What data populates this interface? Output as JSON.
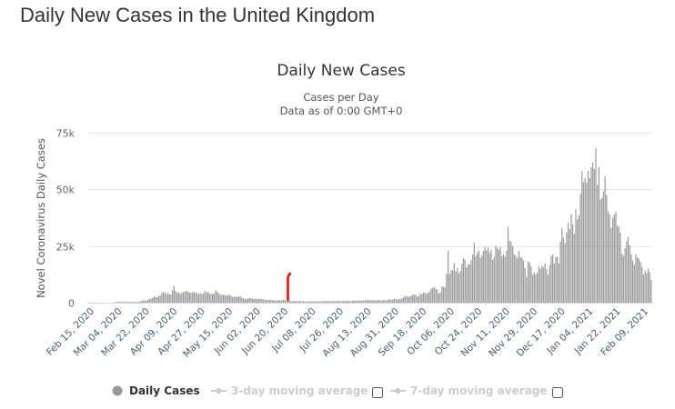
{
  "page": {
    "title": "Daily New Cases in the United Kingdom"
  },
  "chart_data": {
    "type": "bar",
    "title": "Daily New Cases",
    "subtitle": [
      "Cases per Day",
      "Data as of 0:00 GMT+0"
    ],
    "ylabel": "Novel Coronavirus Daily Cases",
    "xlabel": "",
    "ylim": [
      0,
      75000
    ],
    "yticks": [
      {
        "v": 0,
        "label": "0"
      },
      {
        "v": 25000,
        "label": "25k"
      },
      {
        "v": 50000,
        "label": "50k"
      },
      {
        "v": 75000,
        "label": "75k"
      }
    ],
    "grid": true,
    "xtick_labels": [
      "Feb 15, 2020",
      "Mar 04, 2020",
      "Mar 22, 2020",
      "Apr 09, 2020",
      "Apr 27, 2020",
      "May 15, 2020",
      "Jun 02, 2020",
      "Jun 20, 2020",
      "Jul 08, 2020",
      "Jul 26, 2020",
      "Aug 13, 2020",
      "Aug 31, 2020",
      "Sep 18, 2020",
      "Oct 06, 2020",
      "Oct 24, 2020",
      "Nov 11, 2020",
      "Nov 29, 2020",
      "Dec 17, 2020",
      "Jan 04, 2021",
      "Jan 22, 2021",
      "Feb 09, 2021"
    ],
    "xtick_every_days": 18,
    "bar_color": "#999999",
    "annotation_color": "#ff0000",
    "series": [
      {
        "name": "Daily Cases",
        "values": [
          0,
          0,
          0,
          0,
          0,
          0,
          0,
          0,
          0,
          0,
          0,
          0,
          0,
          0,
          0,
          0,
          10,
          20,
          30,
          40,
          50,
          60,
          50,
          70,
          50,
          80,
          130,
          200,
          250,
          150,
          300,
          400,
          650,
          700,
          1000,
          1000,
          900,
          1400,
          1450,
          1900,
          2100,
          2900,
          2500,
          2400,
          3000,
          3100,
          4300,
          4500,
          4700,
          3800,
          4200,
          3700,
          3600,
          5500,
          7400,
          5200,
          4300,
          4600,
          3900,
          4400,
          4600,
          4700,
          5300,
          4800,
          4400,
          4300,
          4600,
          4500,
          4500,
          4200,
          3800,
          4200,
          3900,
          4000,
          5300,
          4500,
          4800,
          4100,
          3800,
          3900,
          4200,
          5600,
          4800,
          4100,
          3500,
          3400,
          3500,
          3400,
          3200,
          3300,
          3500,
          3000,
          2500,
          2600,
          2700,
          2500,
          2600,
          2900,
          2200,
          2000,
          1700,
          1600,
          1900,
          2000,
          1900,
          1700,
          1600,
          1800,
          1500,
          1800,
          1600,
          1700,
          1400,
          1300,
          1200,
          1100,
          1200,
          1300,
          1100,
          1000,
          900,
          1000,
          1100,
          1000,
          1000,
          1300,
          1100,
          900,
          900,
          850,
          650,
          700,
          750,
          650,
          600,
          800,
          700,
          600,
          650,
          600,
          550,
          500,
          560,
          600,
          520,
          600,
          600,
          500,
          550,
          640,
          580,
          620,
          700,
          650,
          750,
          580,
          700,
          550,
          760,
          700,
          750,
          760,
          720,
          700,
          750,
          800,
          880,
          850,
          740,
          740,
          900,
          850,
          950,
          900,
          870,
          1000,
          1000,
          900,
          1100,
          1000,
          1200,
          1100,
          1000,
          1050,
          900,
          1000,
          1100,
          1200,
          1000,
          1050,
          1000,
          1200,
          1000,
          1300,
          1500,
          1200,
          1300,
          1700,
          1500,
          1300,
          1600,
          1700,
          1900,
          2300,
          3000,
          2900,
          2500,
          2800,
          3000,
          3500,
          3500,
          3300,
          2600,
          3100,
          3900,
          3800,
          4300,
          4400,
          3900,
          4400,
          4900,
          6100,
          6600,
          6900,
          6100,
          5700,
          4100,
          4500,
          7100,
          6900,
          6900,
          12800,
          22900,
          12600,
          14500,
          14200,
          17500,
          13800,
          15200,
          13000,
          13900,
          17200,
          19700,
          18900,
          15600,
          16900,
          16900,
          18800,
          21300,
          26700,
          20500,
          21900,
          23000,
          19800,
          20900,
          22900,
          24700,
          23100,
          24400,
          21900,
          23300,
          18900,
          20000,
          25100,
          24100,
          23300,
          24500,
          20600,
          21400,
          20400,
          22900,
          33500,
          27300,
          26900,
          24900,
          21400,
          20700,
          19600,
          22900,
          20200,
          19900,
          18700,
          15400,
          11300,
          18200,
          17600,
          16000,
          12300,
          13400,
          12400,
          13400,
          16100,
          14900,
          16300,
          15500,
          17300,
          14700,
          12300,
          16600,
          20600,
          21300,
          17400,
          20300,
          20200,
          17300,
          27000,
          32900,
          28700,
          26300,
          31000,
          35300,
          32500,
          39200,
          34700,
          30400,
          41100,
          36800,
          38500,
          48000,
          58000,
          53100,
          55000,
          52900,
          58200,
          54900,
          59700,
          61900,
          59000,
          68100,
          52000,
          59900,
          45500,
          46200,
          48900,
          55700,
          47500,
          40300,
          38900,
          33000,
          37500,
          39000,
          40000,
          33900,
          33500,
          30900,
          21800,
          20600,
          24000,
          27000,
          29000,
          25300,
          21400,
          18600,
          16800,
          21300,
          20000,
          19400,
          18100,
          15800,
          12300,
          14100,
          13000,
          15100,
          13500,
          10000
        ]
      }
    ],
    "legend": {
      "placement": "bottom",
      "items": [
        {
          "label": "Daily Cases",
          "active": true,
          "color": "#999999"
        },
        {
          "label": "3-day moving average",
          "active": false,
          "checked": false,
          "color": "#cccccc"
        },
        {
          "label": "7-day moving average",
          "active": false,
          "checked": false,
          "color": "#cccccc"
        }
      ]
    }
  }
}
